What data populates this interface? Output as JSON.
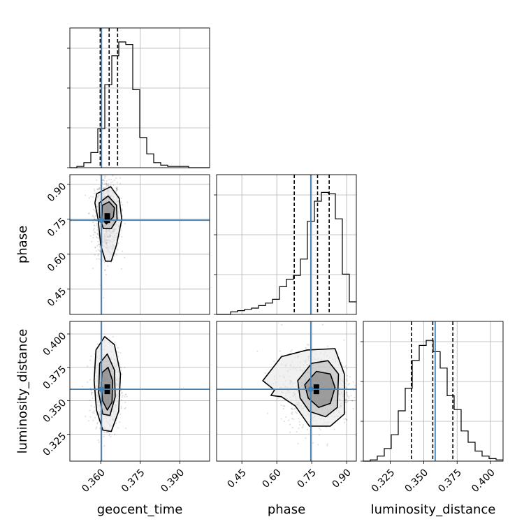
{
  "chart_data": {
    "type": "corner",
    "parameters": [
      "geocent_time",
      "phase",
      "luminosity_distance"
    ],
    "truth_color": "#4682b4",
    "grid": true,
    "axis_labels": {
      "geocent_time": "geocent_time",
      "phase": "phase",
      "luminosity_distance": "luminosity_distance"
    },
    "ranges": {
      "geocent_time": [
        0.3483,
        0.4013
      ],
      "phase": [
        0.3415,
        0.9415
      ],
      "luminosity_distance": [
        0.3048,
        0.4094
      ]
    },
    "ticks": {
      "geocent_time": [
        0.36,
        0.375,
        0.39
      ],
      "phase": [
        0.45,
        0.6,
        0.75,
        0.9
      ],
      "luminosity_distance": [
        0.325,
        0.35,
        0.375,
        0.4
      ]
    },
    "tick_labels": {
      "geocent_time": [
        "0.360",
        "0.375",
        "0.390"
      ],
      "phase": [
        "0.45",
        "0.60",
        "0.75",
        "0.90"
      ],
      "luminosity_distance": [
        "0.325",
        "0.350",
        "0.375",
        "0.400"
      ]
    },
    "truths": {
      "geocent_time": 0.3603,
      "phase": 0.746,
      "luminosity_distance": 0.3586
    },
    "quantiles": {
      "geocent_time": [
        0.3598,
        0.3632,
        0.3664
      ],
      "phase": [
        0.675,
        0.775,
        0.825
      ],
      "luminosity_distance": [
        0.3408,
        0.3568,
        0.3718
      ]
    },
    "histograms": {
      "geocent_time": [
        0,
        0.01,
        0.04,
        0.12,
        0.31,
        0.66,
        0.89,
        1.0,
        0.98,
        0.62,
        0.24,
        0.11,
        0.04,
        0.02,
        0.01,
        0.01,
        0.01,
        0,
        0,
        0
      ],
      "phase": [
        0,
        0,
        0.02,
        0.03,
        0.04,
        0.05,
        0.07,
        0.09,
        0.12,
        0.22,
        0.28,
        0.31,
        0.44,
        0.74,
        0.9,
        0.97,
        0.96,
        0.76,
        0.32,
        0.1
      ],
      "luminosity_distance": [
        0,
        0.01,
        0.04,
        0.1,
        0.21,
        0.4,
        0.58,
        0.8,
        0.92,
        0.96,
        0.87,
        0.74,
        0.52,
        0.41,
        0.24,
        0.15,
        0.08,
        0.04,
        0.02,
        0.01
      ]
    },
    "joint_2d": [
      {
        "x": "geocent_time",
        "y": "phase",
        "mean": [
          0.3625,
          0.755
        ],
        "sd": [
          0.0024,
          0.085
        ],
        "contour_levels": [
          [
            [
              0.3585,
              0.86
            ],
            [
              0.3638,
              0.89
            ],
            [
              0.367,
              0.84
            ],
            [
              0.368,
              0.75
            ],
            [
              0.366,
              0.64
            ],
            [
              0.364,
              0.57
            ],
            [
              0.3618,
              0.57
            ],
            [
              0.36,
              0.64
            ],
            [
              0.359,
              0.75
            ],
            [
              0.3578,
              0.82
            ]
          ],
          [
            [
              0.3594,
              0.82
            ],
            [
              0.3628,
              0.85
            ],
            [
              0.366,
              0.81
            ],
            [
              0.3662,
              0.75
            ],
            [
              0.364,
              0.71
            ],
            [
              0.361,
              0.71
            ],
            [
              0.3596,
              0.76
            ]
          ],
          [
            [
              0.3606,
              0.81
            ],
            [
              0.3632,
              0.825
            ],
            [
              0.3652,
              0.8
            ],
            [
              0.3648,
              0.76
            ],
            [
              0.3622,
              0.73
            ],
            [
              0.3604,
              0.75
            ]
          ]
        ]
      },
      {
        "x": "geocent_time",
        "y": "luminosity_distance",
        "mean": [
          0.3625,
          0.3586
        ],
        "sd": [
          0.0025,
          0.0135
        ],
        "contour_levels": [
          [
            [
              0.3582,
              0.388
            ],
            [
              0.3615,
              0.398
            ],
            [
              0.3652,
              0.392
            ],
            [
              0.3675,
              0.37
            ],
            [
              0.3668,
              0.342
            ],
            [
              0.364,
              0.327
            ],
            [
              0.3608,
              0.328
            ],
            [
              0.3584,
              0.343
            ],
            [
              0.3575,
              0.365
            ]
          ],
          [
            [
              0.3596,
              0.378
            ],
            [
              0.3625,
              0.385
            ],
            [
              0.3652,
              0.373
            ],
            [
              0.3655,
              0.353
            ],
            [
              0.3635,
              0.339
            ],
            [
              0.3608,
              0.34
            ],
            [
              0.3592,
              0.356
            ]
          ],
          [
            [
              0.3605,
              0.371
            ],
            [
              0.3628,
              0.375
            ],
            [
              0.3645,
              0.365
            ],
            [
              0.3643,
              0.349
            ],
            [
              0.3625,
              0.343
            ],
            [
              0.3607,
              0.35
            ],
            [
              0.3602,
              0.362
            ]
          ]
        ]
      },
      {
        "x": "phase",
        "y": "luminosity_distance",
        "mean": [
          0.77,
          0.3586
        ],
        "sd": [
          0.075,
          0.0135
        ],
        "contour_levels": [
          [
            [
              0.54,
              0.365
            ],
            [
              0.62,
              0.383
            ],
            [
              0.73,
              0.388
            ],
            [
              0.85,
              0.389
            ],
            [
              0.89,
              0.37
            ],
            [
              0.89,
              0.34
            ],
            [
              0.83,
              0.331
            ],
            [
              0.74,
              0.331
            ],
            [
              0.68,
              0.346
            ],
            [
              0.62,
              0.353
            ],
            [
              0.575,
              0.354
            ],
            [
              0.59,
              0.358
            ]
          ],
          [
            [
              0.69,
              0.365
            ],
            [
              0.75,
              0.378
            ],
            [
              0.82,
              0.38
            ],
            [
              0.865,
              0.37
            ],
            [
              0.86,
              0.345
            ],
            [
              0.81,
              0.338
            ],
            [
              0.74,
              0.342
            ],
            [
              0.7,
              0.352
            ]
          ],
          [
            [
              0.72,
              0.362
            ],
            [
              0.77,
              0.372
            ],
            [
              0.83,
              0.37
            ],
            [
              0.85,
              0.36
            ],
            [
              0.83,
              0.348
            ],
            [
              0.78,
              0.345
            ],
            [
              0.735,
              0.352
            ]
          ]
        ]
      }
    ]
  }
}
